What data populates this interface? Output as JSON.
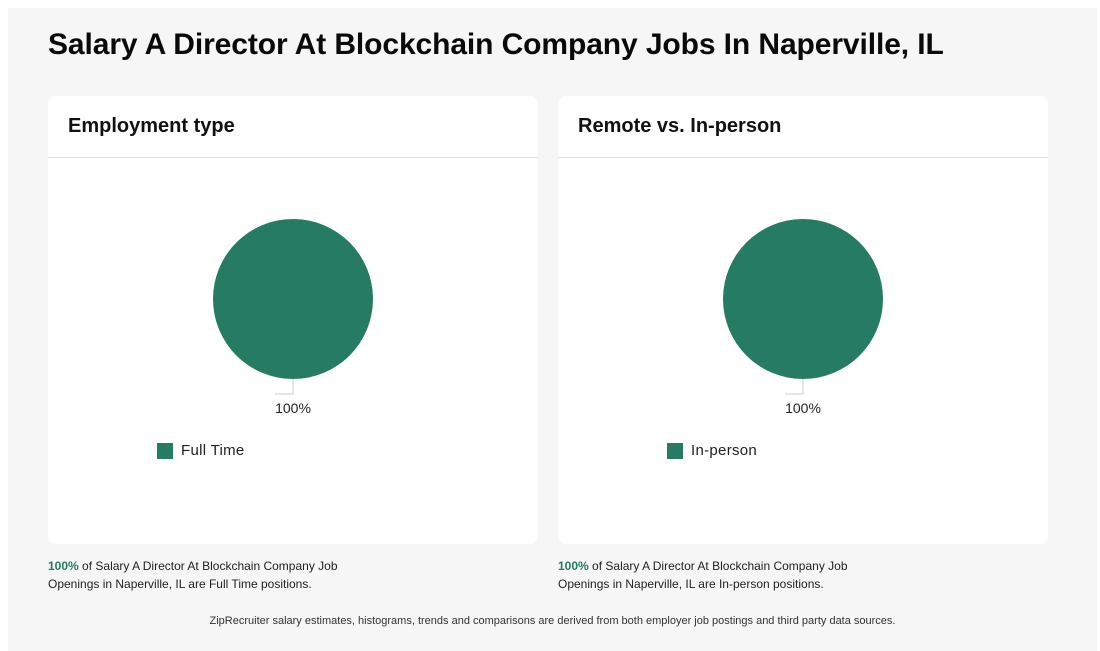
{
  "page": {
    "title": "Salary A Director At Blockchain Company Jobs In Naperville, IL",
    "footer_note": "ZipRecruiter salary estimates, histograms, trends and comparisons are derived from both employer job postings and third party data sources."
  },
  "colors": {
    "accent": "#267b64",
    "background": "#f6f6f6",
    "card": "#ffffff"
  },
  "cards": [
    {
      "title": "Employment type",
      "caption_pct": "100%",
      "caption_text": "of Salary A Director At Blockchain Company Job Openings in Naperville, IL are Full Time positions."
    },
    {
      "title": "Remote vs. In-person",
      "caption_pct": "100%",
      "caption_text": "of Salary A Director At Blockchain Company Job Openings in Naperville, IL are In-person positions."
    }
  ],
  "chart_data": [
    {
      "type": "pie",
      "title": "Employment type",
      "slices": [
        {
          "name": "Full Time",
          "value": 100,
          "label": "100%",
          "color": "#267b64"
        }
      ],
      "legend_position": "bottom-left"
    },
    {
      "type": "pie",
      "title": "Remote vs. In-person",
      "slices": [
        {
          "name": "In-person",
          "value": 100,
          "label": "100%",
          "color": "#267b64"
        }
      ],
      "legend_position": "bottom-left"
    }
  ]
}
